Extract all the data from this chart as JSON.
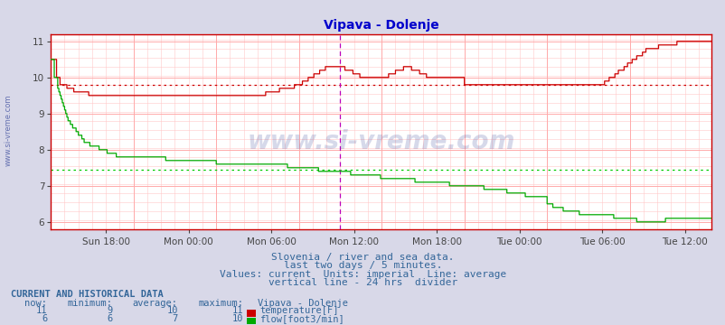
{
  "title": "Vipava - Dolenje",
  "title_color": "#0000cc",
  "bg_color": "#d8d8e8",
  "plot_bg_color": "#ffffff",
  "grid_color_major": "#ffaaaa",
  "grid_color_minor": "#ffd0d0",
  "xlabel_color": "#555555",
  "text_color": "#336699",
  "x_labels": [
    "Sun 18:00",
    "Mon 00:00",
    "Mon 06:00",
    "Mon 12:00",
    "Mon 18:00",
    "Tue 00:00",
    "Tue 06:00",
    "Tue 12:00"
  ],
  "ylim": [
    5.8,
    11.2
  ],
  "yticks": [
    6,
    7,
    8,
    9,
    10,
    11
  ],
  "temp_avg": 9.8,
  "flow_avg": 7.45,
  "vertical_line_x": 252,
  "watermark": "www.si-vreme.com",
  "footer_line1": "Slovenia / river and sea data.",
  "footer_line2": "last two days / 5 minutes.",
  "footer_line3": "Values: current  Units: imperial  Line: average",
  "footer_line4": "vertical line - 24 hrs  divider",
  "legend_title": "Vipava - Dolenje",
  "temp_color": "#cc0000",
  "flow_color": "#00aa00",
  "temp_label": "temperature[F]",
  "flow_label": "flow[foot3/min]",
  "now_temp": "11",
  "min_temp": "9",
  "avg_temp": "10",
  "max_temp": "11",
  "now_flow": "6",
  "min_flow": "6",
  "avg_flow": "7",
  "max_flow": "10",
  "n_points": 576
}
